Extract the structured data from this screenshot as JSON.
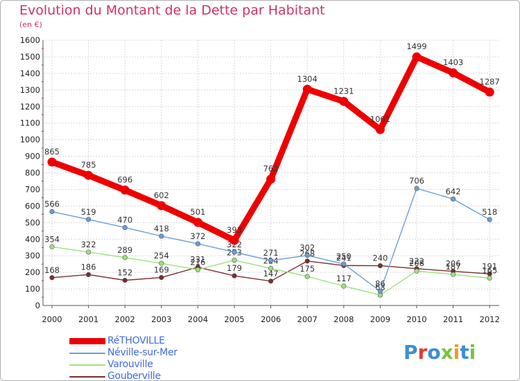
{
  "title": "Evolution du Montant de la Dette par Habitant",
  "subtitle": "(en €)",
  "logo": {
    "text": "Proxiti",
    "colors": [
      "#3a8fd8",
      "#e8392d",
      "#3a8fd8",
      "#7dc242",
      "#f29a1f",
      "#3a8fd8",
      "#7dc242"
    ]
  },
  "chart_data": {
    "type": "line",
    "title": "Evolution du Montant de la Dette par Habitant",
    "subtitle": "(en €)",
    "xlabel": "",
    "ylabel": "",
    "x": [
      "2000",
      "2001",
      "2002",
      "2003",
      "2004",
      "2005",
      "2006",
      "2007",
      "2008",
      "2009",
      "2010",
      "2011",
      "2012"
    ],
    "ylim": [
      0,
      1600
    ],
    "yticks": [
      0,
      100,
      200,
      300,
      400,
      500,
      600,
      700,
      800,
      900,
      1000,
      1100,
      1200,
      1300,
      1400,
      1500,
      1600
    ],
    "grid": true,
    "legend_position": "bottom-left",
    "series": [
      {
        "name": "RéTHOVILLE",
        "color": "#ee0000",
        "emphasis": true,
        "values": [
          865,
          785,
          696,
          602,
          501,
          393,
          762,
          1304,
          1231,
          1061,
          1499,
          1403,
          1287
        ]
      },
      {
        "name": "Néville-sur-Mer",
        "color": "#6a9fd4",
        "values": [
          566,
          519,
          470,
          418,
          372,
          322,
          271,
          302,
          250,
          86,
          706,
          642,
          518
        ]
      },
      {
        "name": "Varouville",
        "color": "#9de17d",
        "values": [
          354,
          322,
          289,
          254,
          216,
          273,
          224,
          175,
          117,
          63,
          208,
          187,
          165
        ]
      },
      {
        "name": "Gouberville",
        "color": "#7a2d2d",
        "values": [
          168,
          186,
          152,
          169,
          231,
          179,
          147,
          268,
          241,
          240,
          222,
          206,
          191
        ]
      }
    ]
  }
}
